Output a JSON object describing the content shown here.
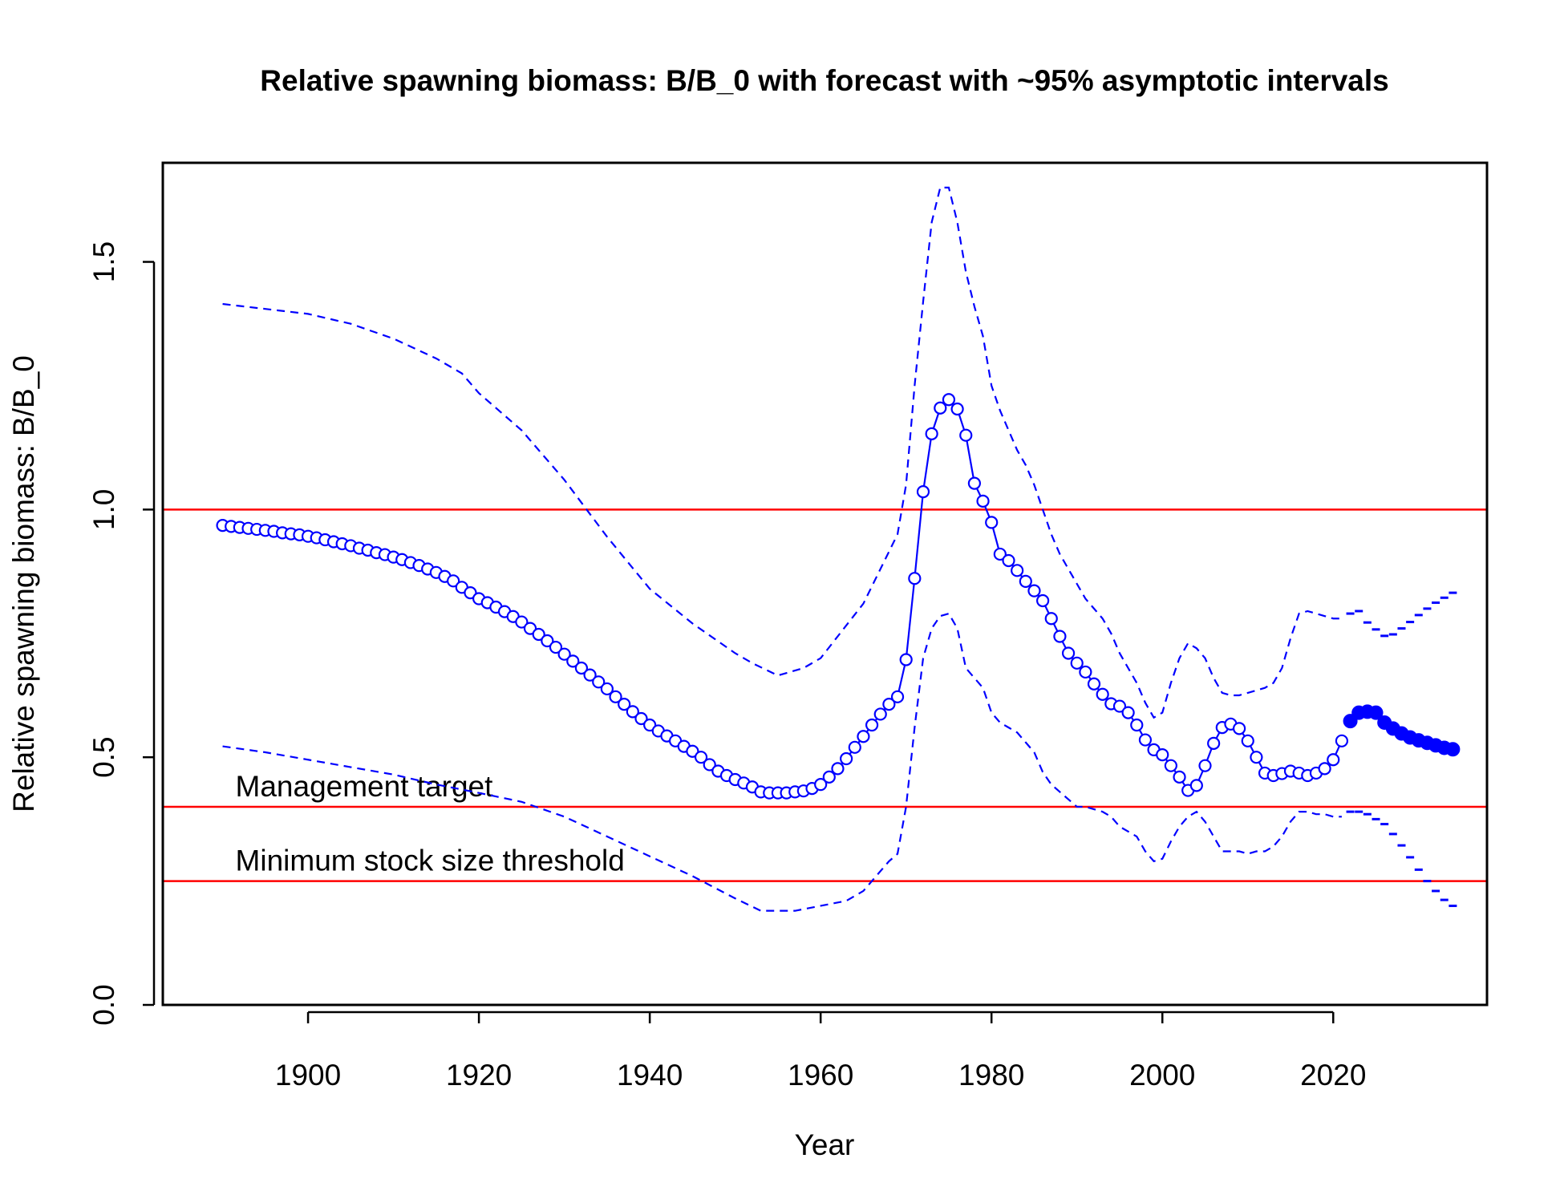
{
  "chart_data": {
    "type": "line",
    "title": "Relative spawning biomass: B/B_0 with forecast with ~95% asymptotic intervals",
    "xlabel": "Year",
    "ylabel": "Relative spawning biomass: B/B_0",
    "xlim": [
      1883,
      2038
    ],
    "ylim": [
      0,
      1.7
    ],
    "x_ticks": [
      1900,
      1920,
      1940,
      1960,
      1980,
      2000,
      2020
    ],
    "y_ticks": [
      0.0,
      0.5,
      1.0,
      1.5
    ],
    "x_tick_labels": [
      "1900",
      "1920",
      "1940",
      "1960",
      "1980",
      "2000",
      "2020"
    ],
    "y_tick_labels": [
      "0.0",
      "0.5",
      "1.0",
      "1.5"
    ],
    "reference_lines": [
      {
        "y": 1.0,
        "label": ""
      },
      {
        "y": 0.4,
        "label": "Management target"
      },
      {
        "y": 0.25,
        "label": "Minimum stock size threshold"
      }
    ],
    "colors": {
      "series": "#0000ff",
      "reference": "#ff0000",
      "axis": "#000000"
    },
    "grid": false,
    "series": [
      {
        "role": "estimate",
        "style": "line-with-open-circles",
        "x": [
          1890,
          1891,
          1892,
          1893,
          1894,
          1895,
          1896,
          1897,
          1898,
          1899,
          1900,
          1901,
          1902,
          1903,
          1904,
          1905,
          1906,
          1907,
          1908,
          1909,
          1910,
          1911,
          1912,
          1913,
          1914,
          1915,
          1916,
          1917,
          1918,
          1919,
          1920,
          1921,
          1922,
          1923,
          1924,
          1925,
          1926,
          1927,
          1928,
          1929,
          1930,
          1931,
          1932,
          1933,
          1934,
          1935,
          1936,
          1937,
          1938,
          1939,
          1940,
          1941,
          1942,
          1943,
          1944,
          1945,
          1946,
          1947,
          1948,
          1949,
          1950,
          1951,
          1952,
          1953,
          1954,
          1955,
          1956,
          1957,
          1958,
          1959,
          1960,
          1961,
          1962,
          1963,
          1964,
          1965,
          1966,
          1967,
          1968,
          1969,
          1970,
          1971,
          1972,
          1973,
          1974,
          1975,
          1976,
          1977,
          1978,
          1979,
          1980,
          1981,
          1982,
          1983,
          1984,
          1985,
          1986,
          1987,
          1988,
          1989,
          1990,
          1991,
          1992,
          1993,
          1994,
          1995,
          1996,
          1997,
          1998,
          1999,
          2000,
          2001,
          2002,
          2003,
          2004,
          2005,
          2006,
          2007,
          2008,
          2009,
          2010,
          2011,
          2012,
          2013,
          2014,
          2015,
          2016,
          2017,
          2018,
          2019,
          2020,
          2021
        ],
        "y": [
          0.968,
          0.966,
          0.964,
          0.962,
          0.96,
          0.958,
          0.956,
          0.953,
          0.951,
          0.949,
          0.946,
          0.943,
          0.939,
          0.935,
          0.931,
          0.927,
          0.922,
          0.918,
          0.913,
          0.909,
          0.904,
          0.899,
          0.893,
          0.887,
          0.88,
          0.873,
          0.865,
          0.856,
          0.843,
          0.832,
          0.82,
          0.812,
          0.803,
          0.794,
          0.784,
          0.773,
          0.76,
          0.748,
          0.735,
          0.722,
          0.708,
          0.694,
          0.68,
          0.666,
          0.652,
          0.638,
          0.622,
          0.607,
          0.592,
          0.578,
          0.565,
          0.553,
          0.543,
          0.533,
          0.522,
          0.512,
          0.5,
          0.485,
          0.472,
          0.463,
          0.455,
          0.448,
          0.44,
          0.43,
          0.428,
          0.428,
          0.428,
          0.43,
          0.432,
          0.437,
          0.445,
          0.46,
          0.477,
          0.497,
          0.52,
          0.542,
          0.565,
          0.587,
          0.607,
          0.622,
          0.697,
          0.861,
          1.036,
          1.153,
          1.205,
          1.222,
          1.203,
          1.15,
          1.053,
          1.017,
          0.974,
          0.91,
          0.897,
          0.877,
          0.855,
          0.836,
          0.816,
          0.78,
          0.744,
          0.71,
          0.69,
          0.672,
          0.648,
          0.627,
          0.608,
          0.603,
          0.59,
          0.565,
          0.535,
          0.515,
          0.505,
          0.483,
          0.46,
          0.433,
          0.443,
          0.483,
          0.528,
          0.56,
          0.567,
          0.558,
          0.533,
          0.5,
          0.468,
          0.463,
          0.467,
          0.472,
          0.468,
          0.463,
          0.468,
          0.477,
          0.495,
          0.533
        ]
      },
      {
        "role": "forecast",
        "style": "filled-circles",
        "x": [
          2022,
          2023,
          2024,
          2025,
          2026,
          2027,
          2028,
          2029,
          2030,
          2031,
          2032,
          2033,
          2034
        ],
        "y": [
          0.573,
          0.59,
          0.592,
          0.59,
          0.57,
          0.558,
          0.548,
          0.54,
          0.534,
          0.529,
          0.524,
          0.519,
          0.516
        ]
      },
      {
        "role": "upper 95% interval",
        "style": "dashed",
        "x": [
          1890,
          1895,
          1900,
          1905,
          1910,
          1915,
          1918,
          1920,
          1925,
          1930,
          1935,
          1940,
          1945,
          1950,
          1952,
          1955,
          1958,
          1960,
          1965,
          1969,
          1970,
          1971,
          1972,
          1973,
          1974,
          1975,
          1976,
          1977,
          1978,
          1979,
          1980,
          1981,
          1982,
          1983,
          1984,
          1985,
          1986,
          1987,
          1988,
          1989,
          1990,
          1991,
          1992,
          1993,
          1994,
          1995,
          1996,
          1997,
          1998,
          1999,
          2000,
          2001,
          2002,
          2003,
          2004,
          2005,
          2006,
          2007,
          2008,
          2009,
          2010,
          2011,
          2012,
          2013,
          2014,
          2015,
          2016,
          2017,
          2018,
          2019,
          2020,
          2021
        ],
        "y": [
          1.415,
          1.405,
          1.395,
          1.375,
          1.345,
          1.305,
          1.275,
          1.235,
          1.16,
          1.06,
          0.945,
          0.84,
          0.77,
          0.71,
          0.69,
          0.665,
          0.68,
          0.7,
          0.81,
          0.95,
          1.05,
          1.25,
          1.42,
          1.58,
          1.65,
          1.65,
          1.58,
          1.48,
          1.41,
          1.35,
          1.25,
          1.2,
          1.16,
          1.12,
          1.09,
          1.05,
          1.0,
          0.95,
          0.91,
          0.88,
          0.85,
          0.82,
          0.8,
          0.78,
          0.75,
          0.71,
          0.68,
          0.65,
          0.61,
          0.58,
          0.59,
          0.65,
          0.7,
          0.73,
          0.72,
          0.7,
          0.66,
          0.63,
          0.625,
          0.625,
          0.63,
          0.635,
          0.64,
          0.65,
          0.68,
          0.74,
          0.79,
          0.795,
          0.79,
          0.785,
          0.78,
          0.78
        ]
      },
      {
        "role": "upper forecast interval",
        "style": "dashes",
        "x": [
          2022,
          2023,
          2024,
          2025,
          2026,
          2027,
          2028,
          2029,
          2030,
          2031,
          2032,
          2033,
          2034
        ],
        "y": [
          0.79,
          0.795,
          0.772,
          0.758,
          0.745,
          0.748,
          0.76,
          0.773,
          0.787,
          0.8,
          0.812,
          0.822,
          0.832
        ]
      },
      {
        "role": "lower 95% interval",
        "style": "dashed",
        "x": [
          1890,
          1895,
          1900,
          1905,
          1910,
          1915,
          1920,
          1925,
          1930,
          1935,
          1940,
          1945,
          1950,
          1953,
          1957,
          1960,
          1963,
          1965,
          1968,
          1969,
          1970,
          1971,
          1972,
          1973,
          1974,
          1975,
          1976,
          1977,
          1978,
          1979,
          1980,
          1981,
          1982,
          1983,
          1984,
          1985,
          1986,
          1987,
          1988,
          1989,
          1990,
          1991,
          1992,
          1993,
          1994,
          1995,
          1996,
          1997,
          1998,
          1999,
          2000,
          2001,
          2002,
          2003,
          2004,
          2005,
          2006,
          2007,
          2008,
          2009,
          2010,
          2011,
          2012,
          2013,
          2014,
          2015,
          2016,
          2017,
          2018,
          2019,
          2020,
          2021
        ],
        "y": [
          0.522,
          0.51,
          0.495,
          0.48,
          0.465,
          0.445,
          0.428,
          0.41,
          0.38,
          0.34,
          0.3,
          0.26,
          0.215,
          0.19,
          0.19,
          0.2,
          0.21,
          0.23,
          0.29,
          0.305,
          0.4,
          0.56,
          0.7,
          0.76,
          0.785,
          0.79,
          0.76,
          0.68,
          0.66,
          0.64,
          0.59,
          0.57,
          0.56,
          0.55,
          0.53,
          0.51,
          0.47,
          0.445,
          0.43,
          0.415,
          0.4,
          0.4,
          0.395,
          0.39,
          0.38,
          0.36,
          0.35,
          0.34,
          0.31,
          0.29,
          0.295,
          0.33,
          0.36,
          0.38,
          0.39,
          0.37,
          0.34,
          0.31,
          0.31,
          0.31,
          0.305,
          0.31,
          0.31,
          0.32,
          0.34,
          0.37,
          0.39,
          0.39,
          0.385,
          0.385,
          0.38,
          0.38
        ]
      },
      {
        "role": "lower forecast interval",
        "style": "dashes",
        "x": [
          2022,
          2023,
          2024,
          2025,
          2026,
          2027,
          2028,
          2029,
          2030,
          2031,
          2032,
          2033,
          2034
        ],
        "y": [
          0.39,
          0.39,
          0.385,
          0.375,
          0.365,
          0.345,
          0.322,
          0.298,
          0.273,
          0.25,
          0.23,
          0.212,
          0.2
        ]
      }
    ]
  }
}
